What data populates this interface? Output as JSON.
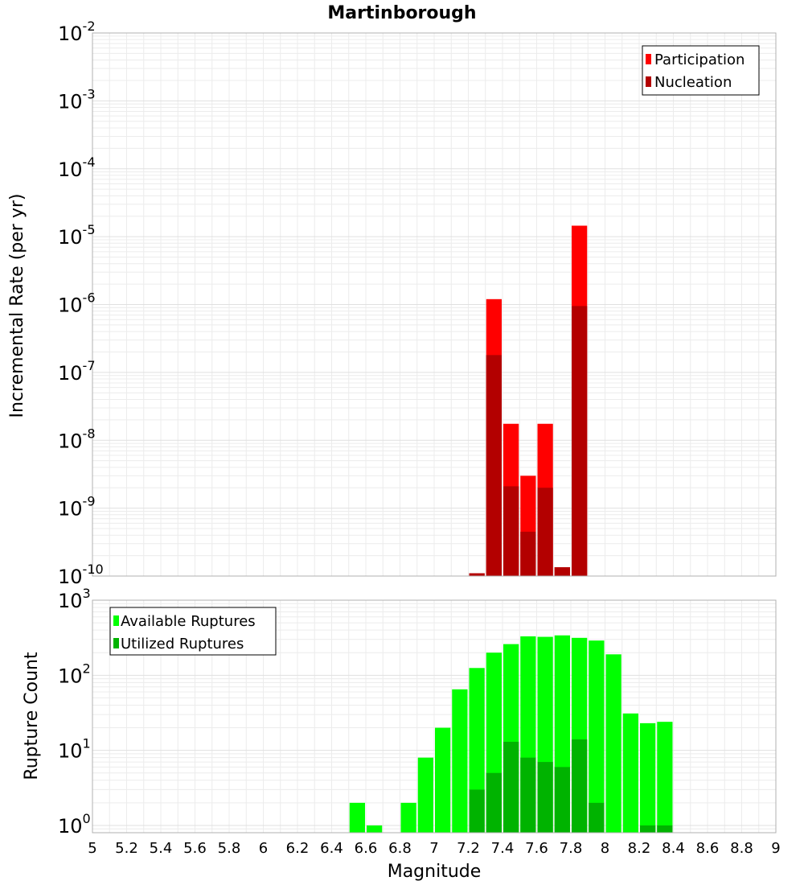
{
  "chart_data": [
    {
      "type": "bar",
      "title": "Martinborough",
      "xlabel": "",
      "ylabel": "Incremental Rate (per yr)",
      "yscale": "log",
      "ylim": [
        1e-10,
        0.01
      ],
      "xlim": [
        5,
        9
      ],
      "y_tick_exponents": [
        "-10",
        "-9",
        "-8",
        "-7",
        "-6",
        "-5",
        "-4",
        "-3",
        "-2"
      ],
      "grid": true,
      "legend_position": "top-right",
      "bar_width": 0.1,
      "series": [
        {
          "name": "Participation",
          "color": "#ff0000",
          "x": [
            7.25,
            7.35,
            7.45,
            7.55,
            7.65,
            7.75,
            7.85
          ],
          "values": [
            1.1e-10,
            1.2e-06,
            1.75e-08,
            3e-09,
            1.75e-08,
            1.35e-10,
            1.45e-05
          ]
        },
        {
          "name": "Nucleation",
          "color": "#b30000",
          "x": [
            7.25,
            7.35,
            7.45,
            7.55,
            7.65,
            7.75,
            7.85
          ],
          "values": [
            1.1e-10,
            1.8e-07,
            2.1e-09,
            4.5e-10,
            2e-09,
            1.35e-10,
            9.5e-07
          ]
        }
      ]
    },
    {
      "type": "bar",
      "title": "",
      "xlabel": "Magnitude",
      "ylabel": "Rupture Count",
      "yscale": "log",
      "ylim": [
        0.8,
        1000
      ],
      "xlim": [
        5,
        9
      ],
      "y_tick_exponents": [
        "0",
        "1",
        "2",
        "3"
      ],
      "x_ticks": [
        "5",
        "5.2",
        "5.4",
        "5.6",
        "5.8",
        "6",
        "6.2",
        "6.4",
        "6.6",
        "6.8",
        "7",
        "7.2",
        "7.4",
        "7.6",
        "7.8",
        "8",
        "8.2",
        "8.4",
        "8.6",
        "8.8",
        "9"
      ],
      "grid": true,
      "legend_position": "top-left",
      "bar_width": 0.1,
      "series": [
        {
          "name": "Available Ruptures",
          "color": "#00ff00",
          "x": [
            6.55,
            6.65,
            6.85,
            6.95,
            7.05,
            7.15,
            7.25,
            7.35,
            7.45,
            7.55,
            7.65,
            7.75,
            7.85,
            7.95,
            8.05,
            8.15,
            8.25,
            8.35
          ],
          "values": [
            2,
            1,
            2,
            8,
            20,
            65,
            125,
            200,
            260,
            330,
            325,
            340,
            315,
            290,
            190,
            31,
            23,
            24
          ]
        },
        {
          "name": "Utilized Ruptures",
          "color": "#00b300",
          "x": [
            7.25,
            7.35,
            7.45,
            7.55,
            7.65,
            7.75,
            7.85,
            7.95,
            8.25,
            8.35
          ],
          "values": [
            3,
            5,
            13,
            8,
            7,
            6,
            14,
            2,
            1,
            1
          ]
        }
      ]
    }
  ]
}
